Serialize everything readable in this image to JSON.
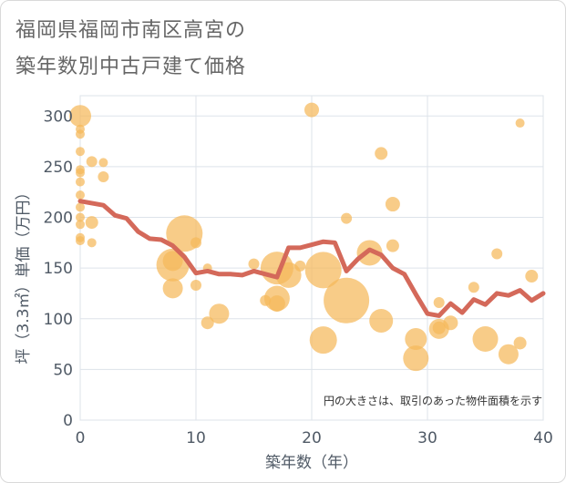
{
  "chart_data": {
    "type": "scatter",
    "title_line1": "福岡県福岡市南区高宮の",
    "title_line2": "築年数別中古戸建て価格",
    "xlabel": "築年数（年）",
    "ylabel": "坪（3.3㎡）単価（万円）",
    "xlim": [
      0,
      40
    ],
    "ylim": [
      0,
      320
    ],
    "xticks": [
      "0",
      "10",
      "20",
      "30",
      "40"
    ],
    "yticks": [
      "0",
      "50",
      "100",
      "150",
      "200",
      "250",
      "300"
    ],
    "grid": true,
    "note": "円の大きさは、取引のあった物件面積を示す",
    "colors": {
      "bubble": "#f5b95a",
      "line": "#d4695a",
      "grid": "#dde3ea"
    },
    "scatter": [
      {
        "x": 0,
        "y": 300,
        "s": 12
      },
      {
        "x": 0,
        "y": 287,
        "s": 5
      },
      {
        "x": 0,
        "y": 282,
        "s": 5
      },
      {
        "x": 0,
        "y": 265,
        "s": 5
      },
      {
        "x": 0,
        "y": 247,
        "s": 5
      },
      {
        "x": 0,
        "y": 244,
        "s": 5
      },
      {
        "x": 0,
        "y": 235,
        "s": 5
      },
      {
        "x": 0,
        "y": 222,
        "s": 5
      },
      {
        "x": 0,
        "y": 210,
        "s": 5
      },
      {
        "x": 0,
        "y": 200,
        "s": 5
      },
      {
        "x": 0,
        "y": 193,
        "s": 5
      },
      {
        "x": 0,
        "y": 180,
        "s": 5
      },
      {
        "x": 0,
        "y": 177,
        "s": 5
      },
      {
        "x": 1,
        "y": 255,
        "s": 6
      },
      {
        "x": 2,
        "y": 254,
        "s": 5
      },
      {
        "x": 2,
        "y": 240,
        "s": 6
      },
      {
        "x": 1,
        "y": 195,
        "s": 7
      },
      {
        "x": 1,
        "y": 175,
        "s": 5
      },
      {
        "x": 9,
        "y": 184,
        "s": 20
      },
      {
        "x": 10,
        "y": 175,
        "s": 6
      },
      {
        "x": 8,
        "y": 157,
        "s": 11
      },
      {
        "x": 8,
        "y": 153,
        "s": 18
      },
      {
        "x": 8,
        "y": 130,
        "s": 11
      },
      {
        "x": 10,
        "y": 133,
        "s": 6
      },
      {
        "x": 11,
        "y": 150,
        "s": 5
      },
      {
        "x": 11,
        "y": 96,
        "s": 7
      },
      {
        "x": 12,
        "y": 105,
        "s": 11
      },
      {
        "x": 15,
        "y": 154,
        "s": 6
      },
      {
        "x": 17,
        "y": 150,
        "s": 18
      },
      {
        "x": 18,
        "y": 143,
        "s": 14
      },
      {
        "x": 17,
        "y": 120,
        "s": 14
      },
      {
        "x": 17,
        "y": 115,
        "s": 9
      },
      {
        "x": 16,
        "y": 118,
        "s": 6
      },
      {
        "x": 19,
        "y": 152,
        "s": 6
      },
      {
        "x": 21,
        "y": 148,
        "s": 20
      },
      {
        "x": 23,
        "y": 118,
        "s": 25
      },
      {
        "x": 21,
        "y": 79,
        "s": 15
      },
      {
        "x": 20,
        "y": 306,
        "s": 8
      },
      {
        "x": 23,
        "y": 199,
        "s": 6
      },
      {
        "x": 25,
        "y": 165,
        "s": 14
      },
      {
        "x": 26,
        "y": 98,
        "s": 13
      },
      {
        "x": 26,
        "y": 263,
        "s": 7
      },
      {
        "x": 27,
        "y": 213,
        "s": 8
      },
      {
        "x": 27,
        "y": 172,
        "s": 7
      },
      {
        "x": 29,
        "y": 80,
        "s": 12
      },
      {
        "x": 29,
        "y": 61,
        "s": 14
      },
      {
        "x": 31,
        "y": 90,
        "s": 11
      },
      {
        "x": 31,
        "y": 116,
        "s": 6
      },
      {
        "x": 31,
        "y": 91,
        "s": 7
      },
      {
        "x": 32,
        "y": 96,
        "s": 8
      },
      {
        "x": 34,
        "y": 131,
        "s": 6
      },
      {
        "x": 35,
        "y": 80,
        "s": 14
      },
      {
        "x": 36,
        "y": 164,
        "s": 6
      },
      {
        "x": 37,
        "y": 65,
        "s": 11
      },
      {
        "x": 38,
        "y": 293,
        "s": 5
      },
      {
        "x": 38,
        "y": 76,
        "s": 7
      },
      {
        "x": 39,
        "y": 142,
        "s": 7
      }
    ],
    "line": {
      "x": [
        0,
        1,
        2,
        3,
        4,
        5,
        6,
        7,
        8,
        9,
        10,
        11,
        12,
        13,
        14,
        15,
        16,
        17,
        18,
        19,
        20,
        21,
        22,
        23,
        24,
        25,
        26,
        27,
        28,
        29,
        30,
        31,
        32,
        33,
        34,
        35,
        36,
        37,
        38,
        39,
        40
      ],
      "y": [
        216,
        214,
        212,
        202,
        199,
        186,
        179,
        178,
        172,
        161,
        145,
        147,
        144,
        144,
        143,
        147,
        144,
        141,
        170,
        170,
        173,
        176,
        175,
        147,
        159,
        168,
        163,
        150,
        144,
        124,
        105,
        103,
        115,
        106,
        119,
        114,
        125,
        123,
        128,
        118,
        125
      ]
    }
  }
}
